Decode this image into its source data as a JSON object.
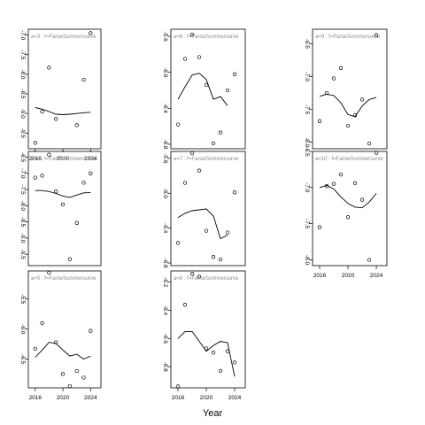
{
  "figure": {
    "xlabel": "Year"
  },
  "chart_data": [
    {
      "type": "scatter",
      "panel_label": "a=3 : f=FaroeSummersurve",
      "xlim": [
        2015,
        2025.5
      ],
      "ylim": [
        -9.9,
        -6.85
      ],
      "x_ticks": [
        2016,
        2020,
        2024
      ],
      "y_ticks": [
        -7.0,
        -7.5,
        -8.0,
        -8.5,
        -9.0,
        -9.5
      ],
      "y_tick_labels": [
        "-7.0",
        "-7.5",
        "-8.0",
        "-8.5",
        "-9.0",
        "-9.5"
      ],
      "x": [
        2016,
        2017,
        2018,
        2019,
        2020,
        2021,
        2022,
        2023,
        2024
      ],
      "points": [
        -9.75,
        -8.95,
        -7.83,
        -9.14,
        null,
        null,
        -9.3,
        -8.14,
        -6.95
      ],
      "fit": [
        -8.85,
        -8.89,
        -8.95,
        -9.02,
        -9.03,
        -9.02,
        -9.0,
        -8.98,
        -8.97
      ]
    },
    {
      "type": "scatter",
      "panel_label": "a=6 : f=FaroeSummersurve",
      "xlim": [
        2015,
        2025.5
      ],
      "ylim": [
        -6.85,
        -5.52
      ],
      "x_ticks": [],
      "y_ticks": [
        -5.6,
        -6.0,
        -6.4,
        -6.8
      ],
      "y_tick_labels": [
        "-5.6",
        "-6.0",
        "-6.4",
        "-6.8"
      ],
      "x": [
        2016,
        2017,
        2018,
        2019,
        2020,
        2021,
        2022,
        2023,
        2024
      ],
      "points": [
        -6.58,
        -5.85,
        -5.58,
        -5.83,
        -6.14,
        -6.79,
        -6.67,
        -6.2,
        -6.02
      ],
      "fit": [
        -6.3,
        -6.16,
        -6.03,
        -6.01,
        -6.08,
        -6.3,
        -6.27,
        -6.37,
        null
      ]
    },
    {
      "type": "scatter",
      "panel_label": "a=9 : f=FaroeSummersurve",
      "xlim": [
        2015,
        2025.5
      ],
      "ylim": [
        -8.1,
        -6.28
      ],
      "x_ticks": [],
      "y_ticks": [
        -6.5,
        -7.0,
        -7.5,
        -8.0
      ],
      "y_tick_labels": [
        "-6.5",
        "-7.0",
        "-7.5",
        "-8.0"
      ],
      "x": [
        2016,
        2017,
        2018,
        2019,
        2020,
        2021,
        2022,
        2023,
        2024
      ],
      "points": [
        -7.68,
        -7.25,
        -7.03,
        -6.87,
        -7.75,
        -7.59,
        -7.35,
        -8.02,
        -6.37
      ],
      "fit": [
        -7.3,
        -7.27,
        -7.29,
        -7.4,
        -7.58,
        -7.61,
        -7.45,
        -7.35,
        -7.32
      ]
    },
    {
      "type": "scatter",
      "panel_label": "a=4 : f=FaroeSummersurve",
      "xlim": [
        2015,
        2025.5
      ],
      "ylim": [
        -9.85,
        -6.32
      ],
      "x_ticks": [],
      "y_ticks": [
        -6.5,
        -7.0,
        -7.5,
        -8.0,
        -8.5,
        -9.0,
        -9.5
      ],
      "y_tick_labels": [
        "-6.5",
        "-7.0",
        "-7.5",
        "-8.0",
        "-8.5",
        "-9.0",
        "-9.5"
      ],
      "x": [
        2016,
        2017,
        2018,
        2019,
        2020,
        2021,
        2022,
        2023,
        2024
      ],
      "points": [
        -7.13,
        -7.07,
        -6.42,
        -7.56,
        -7.96,
        -9.65,
        -8.53,
        -7.29,
        -7.0
      ],
      "fit": [
        -7.53,
        -7.53,
        -7.56,
        -7.62,
        -7.7,
        -7.74,
        -7.67,
        -7.6,
        -7.59
      ]
    },
    {
      "type": "scatter",
      "panel_label": "a=7 : f=FaroeSummersurve",
      "xlim": [
        2015,
        2025.5
      ],
      "ylim": [
        -6.83,
        -5.52
      ],
      "x_ticks": [],
      "y_ticks": [
        -5.6,
        -6.0,
        -6.4,
        -6.8
      ],
      "y_tick_labels": [
        "-5.6",
        "-6.0",
        "-6.4",
        "-6.8"
      ],
      "x": [
        2016,
        2017,
        2018,
        2019,
        2020,
        2021,
        2022,
        2023,
        2024
      ],
      "points": [
        -6.57,
        -5.88,
        -5.54,
        -5.74,
        -6.43,
        -6.73,
        -6.76,
        -6.45,
        -5.99
      ],
      "fit": [
        -6.28,
        -6.23,
        -6.2,
        -6.19,
        -6.18,
        -6.26,
        -6.52,
        -6.48,
        null
      ]
    },
    {
      "type": "scatter",
      "panel_label": "a=10 : f=FaroeSummersurve",
      "xlim": [
        2015,
        2025.5
      ],
      "ylim": [
        -8.08,
        -6.5
      ],
      "x_ticks": [
        2016,
        2020,
        2024
      ],
      "y_ticks": [
        -6.5,
        -7.0,
        -7.5,
        -8.0
      ],
      "y_tick_labels": [
        "-6.5",
        "-7.0",
        "-7.5",
        "-8.0"
      ],
      "x": [
        2016,
        2017,
        2018,
        2019,
        2020,
        2021,
        2022,
        2023,
        2024
      ],
      "points": [
        -7.55,
        -6.98,
        -6.95,
        -6.82,
        -7.41,
        -6.94,
        -7.17,
        -8.0,
        -6.52
      ],
      "fit": [
        -7.0,
        -6.97,
        -7.02,
        -7.13,
        -7.22,
        -7.27,
        -7.28,
        -7.2,
        -7.08
      ]
    },
    {
      "type": "scatter",
      "panel_label": "a=5 : f=FaroeSummersurve",
      "xlim": [
        2015,
        2025.5
      ],
      "ylim": [
        -6.98,
        -5.03
      ],
      "x_ticks": [
        2016,
        2020,
        2024
      ],
      "y_ticks": [
        -5.5,
        -6.0,
        -6.5
      ],
      "y_tick_labels": [
        "-5.5",
        "-6.0",
        "-6.5"
      ],
      "x": [
        2016,
        2017,
        2018,
        2019,
        2020,
        2021,
        2022,
        2023,
        2024
      ],
      "points": [
        -6.33,
        -5.9,
        -5.06,
        -6.22,
        -6.75,
        -6.95,
        -6.7,
        -6.81,
        -6.03
      ],
      "fit": [
        -6.47,
        -6.35,
        -6.22,
        -6.24,
        -6.35,
        -6.45,
        -6.42,
        -6.5,
        -6.45
      ]
    },
    {
      "type": "scatter",
      "panel_label": "a=8 : f=FaroeSummersurve",
      "xlim": [
        2015,
        2025.5
      ],
      "ylim": [
        -6.95,
        -6.12
      ],
      "x_ticks": [
        2016,
        2020,
        2024
      ],
      "y_ticks": [
        -6.2,
        -6.4,
        -6.6,
        -6.8
      ],
      "y_tick_labels": [
        "-6.2",
        "-6.4",
        "-6.6",
        "-6.8"
      ],
      "x": [
        2016,
        2017,
        2018,
        2019,
        2020,
        2021,
        2022,
        2023,
        2024
      ],
      "points": [
        -6.94,
        -6.36,
        -6.14,
        -6.16,
        -6.67,
        -6.7,
        -6.83,
        -6.69,
        -6.77
      ],
      "fit": [
        -6.6,
        -6.55,
        -6.55,
        -6.62,
        -6.69,
        -6.65,
        -6.62,
        -6.63,
        -6.87
      ]
    }
  ]
}
